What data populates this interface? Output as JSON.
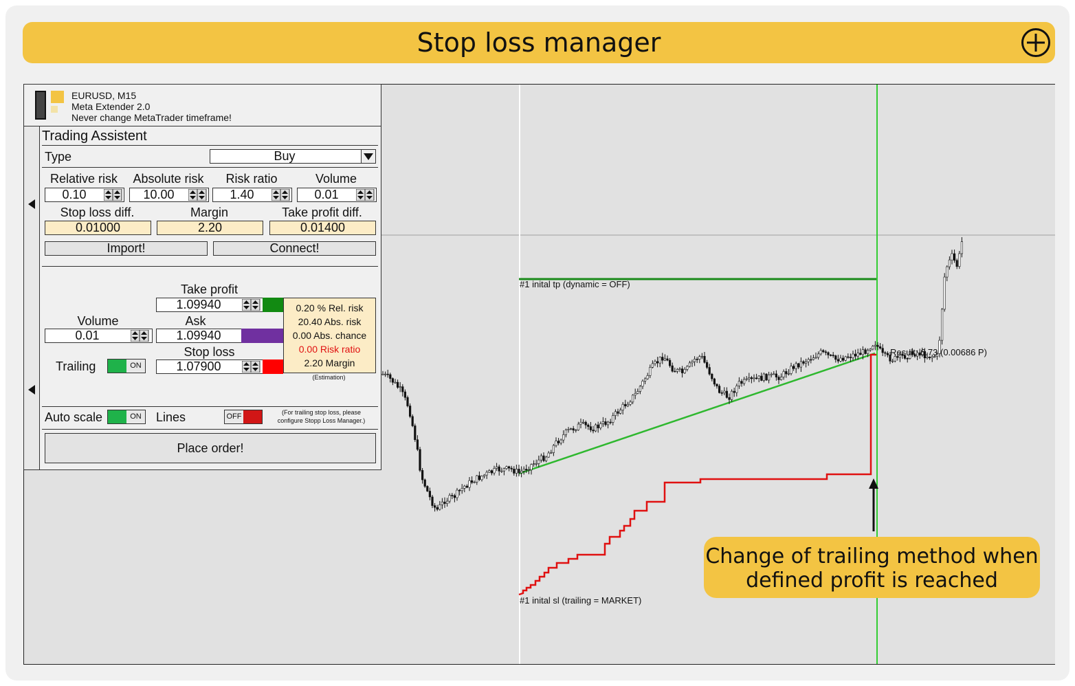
{
  "title": "Stop loss manager",
  "header": {
    "line1": "EURUSD, M15",
    "line2": "Meta Extender 2.0",
    "line3": "Never change MetaTrader timeframe!"
  },
  "panel": {
    "heading": "Trading Assistent",
    "type_label": "Type",
    "type_value": "Buy",
    "relative_risk_label": "Relative risk",
    "relative_risk": "0.10",
    "absolute_risk_label": "Absolute risk",
    "absolute_risk": "10.00",
    "risk_ratio_label": "Risk ratio",
    "risk_ratio": "1.40",
    "volume_label": "Volume",
    "volume": "0.01",
    "stop_loss_diff_label": "Stop loss diff.",
    "stop_loss_diff": "0.01000",
    "margin_label": "Margin",
    "margin": "2.20",
    "take_profit_diff_label": "Take profit diff.",
    "take_profit_diff": "0.01400",
    "import_label": "Import!",
    "connect_label": "Connect!",
    "take_profit_label": "Take profit",
    "take_profit": "1.09940",
    "order_volume_label": "Volume",
    "order_volume": "0.01",
    "ask_label": "Ask",
    "ask": "1.09940",
    "stop_loss_label": "Stop loss",
    "stop_loss": "1.07900",
    "trailing_label": "Trailing",
    "trailing_state": "ON",
    "estimation": {
      "rel_risk": "0.20 % Rel. risk",
      "abs_risk": "20.40 Abs. risk",
      "abs_chance": "0.00 Abs. chance",
      "risk_ratio": "0.00 Risk ratio",
      "margin": "2.20 Margin",
      "note": "(Estimation)"
    },
    "auto_scale_label": "Auto scale",
    "auto_scale_state": "ON",
    "lines_label": "Lines",
    "lines_state": "OFF",
    "lines_note_1": "(For trailing stop loss, please",
    "lines_note_2": "configure Stopp Loss Manager.)",
    "place_order_label": "Place order!"
  },
  "chart": {
    "tp_label": "#1 inital tp (dynamic = OFF)",
    "sl_label": "#1 inital sl (trailing = MARKET)",
    "result_label": "Result: 6.73 (0.00686 P)",
    "colors": {
      "tp": "#1a8a1a",
      "sl": "#e01010",
      "trend": "#2fb82f",
      "vline": "#32cd32",
      "candle": "#111111"
    }
  },
  "callout": {
    "line1": "Change of trailing method when",
    "line2": "defined profit is reached"
  },
  "colors": {
    "accent": "#f3c443",
    "estimate_bg": "#fcecc6",
    "tp_swatch": "#128a12",
    "ask_swatch": "#7030a0",
    "sl_swatch": "#ff0000"
  }
}
